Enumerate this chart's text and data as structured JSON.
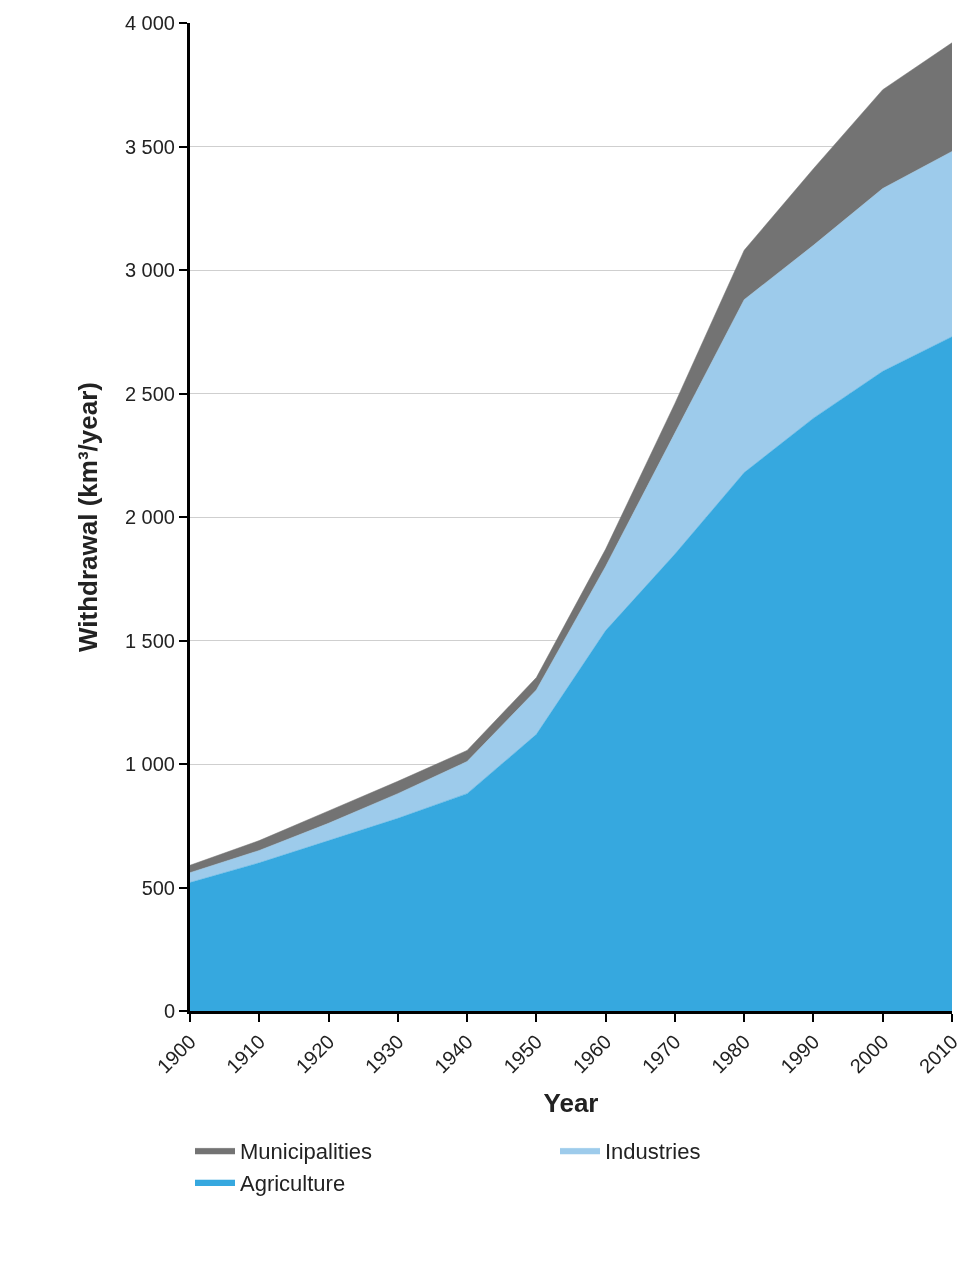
{
  "chart_data": {
    "type": "area",
    "stacked": true,
    "xlabel": "Year",
    "ylabel": "Withdrawal (km³/year)",
    "x": [
      1900,
      1910,
      1920,
      1930,
      1940,
      1950,
      1960,
      1970,
      1980,
      1990,
      2000,
      2010
    ],
    "series": [
      {
        "name": "Agriculture",
        "color": "#36a8df",
        "values": [
          520,
          600,
          690,
          780,
          880,
          1120,
          1540,
          1850,
          2180,
          2400,
          2590,
          2730
        ]
      },
      {
        "name": "Industries",
        "color": "#9dcbeb",
        "values": [
          40,
          50,
          70,
          100,
          130,
          180,
          260,
          490,
          700,
          700,
          740,
          750
        ]
      },
      {
        "name": "Municipalities",
        "color": "#737373",
        "values": [
          30,
          40,
          50,
          50,
          45,
          50,
          70,
          120,
          200,
          310,
          400,
          440
        ]
      }
    ],
    "xlim": [
      1900,
      2010
    ],
    "xticks": [
      1900,
      1910,
      1920,
      1930,
      1940,
      1950,
      1960,
      1970,
      1980,
      1990,
      2000,
      2010
    ],
    "ylim": [
      0,
      4000
    ],
    "yticks": [
      0,
      500,
      {
        "value": 1000,
        "label": "1 000"
      },
      {
        "value": 1500,
        "label": "1 500"
      },
      {
        "value": 2000,
        "label": "2 000"
      },
      {
        "value": 2500,
        "label": "2 500"
      },
      {
        "value": 3000,
        "label": "3 000"
      },
      {
        "value": 3500,
        "label": "3 500"
      },
      {
        "value": 4000,
        "label": "4 000"
      }
    ],
    "grid": "y",
    "legend": "bottom"
  }
}
